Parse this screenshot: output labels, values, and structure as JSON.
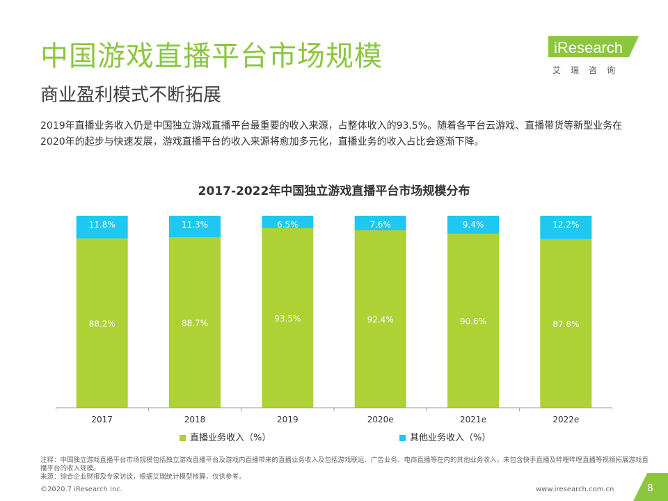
{
  "header": {
    "title": "中国游戏直播平台市场规模",
    "subtitle": "商业盈利模式不断拓展",
    "logo_text": "iResearch",
    "logo_cn": "艾瑞咨询",
    "brand_color": "#8cc63f"
  },
  "description": "2019年直播业务收入仍是中国独立游戏直播平台最重要的收入来源，占整体收入的93.5%。随着各平台云游戏、直播带货等新型业务在2020年的起步与快速发展，游戏直播平台的收入来源将愈加多元化，直播业务的收入占比会逐渐下降。",
  "chart_data": {
    "type": "bar",
    "stacked": true,
    "percent_stacked": true,
    "title": "2017-2022年中国独立游戏直播平台市场规模分布",
    "categories": [
      "2017",
      "2018",
      "2019",
      "2020e",
      "2021e",
      "2022e"
    ],
    "series": [
      {
        "name": "直播业务收入（%）",
        "color": "#aed136",
        "values": [
          88.2,
          88.7,
          93.5,
          92.4,
          90.6,
          87.8
        ],
        "labels": [
          "88.2%",
          "88.7%",
          "93.5%",
          "92.4%",
          "90.6%",
          "87.8%"
        ]
      },
      {
        "name": "其他业务收入（%）",
        "color": "#1ec8f0",
        "values": [
          11.8,
          11.3,
          6.5,
          7.6,
          9.4,
          12.2
        ],
        "labels": [
          "11.8%",
          "11.3%",
          "6.5%",
          "7.6%",
          "9.4%",
          "12.2%"
        ]
      }
    ],
    "ylim": [
      0,
      100
    ],
    "grid": false,
    "legend_position": "bottom"
  },
  "notes": {
    "note": "注释：中国独立游戏直播平台市场规模包括独立游戏直播平台及游戏内直播带来的直播业务收入及包括游戏联运、广告业务、电商直播等在内的其他业务收入，未包含快手直播及哔哩哔哩直播等视频拓展游戏直播平台的收入规模。",
    "source": "来源：综合企业财报及专家访谈，根据艾瑞统计模型核算，仅供参考。"
  },
  "footer": {
    "copyright": "©2020.7 iResearch Inc.",
    "url": "www.iresearch.com.cn",
    "page": "8"
  }
}
